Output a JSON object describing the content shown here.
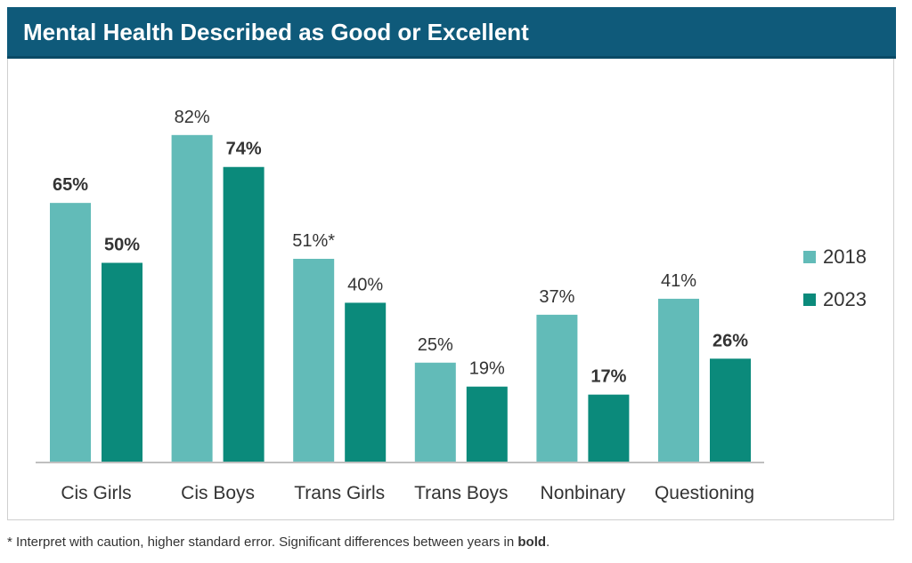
{
  "title": "Mental Health Described as Good or Excellent",
  "footnote": {
    "text_before": "* Interpret with caution, higher standard error. Significant differences between years in ",
    "bold_text": "bold",
    "text_after": "."
  },
  "colors": {
    "series_2018": "#62bbb8",
    "series_2023": "#0b8a7b",
    "title_bar": "#0f5a7a"
  },
  "chart_data": {
    "type": "bar",
    "categories": [
      "Cis Girls",
      "Cis Boys",
      "Trans Girls",
      "Trans Boys",
      "Nonbinary",
      "Questioning"
    ],
    "series": [
      {
        "name": "2018",
        "values": [
          65,
          82,
          51,
          25,
          37,
          41
        ],
        "labels": [
          "65%",
          "82%",
          "51%*",
          "25%",
          "37%",
          "41%"
        ],
        "bold": [
          true,
          false,
          false,
          false,
          false,
          false
        ]
      },
      {
        "name": "2023",
        "values": [
          50,
          74,
          40,
          19,
          17,
          26
        ],
        "labels": [
          "50%",
          "74%",
          "40%",
          "19%",
          "17%",
          "26%"
        ],
        "bold": [
          true,
          true,
          false,
          false,
          true,
          true
        ]
      }
    ],
    "ylim": [
      0,
      100
    ],
    "grid": false,
    "legend_position": "right"
  }
}
